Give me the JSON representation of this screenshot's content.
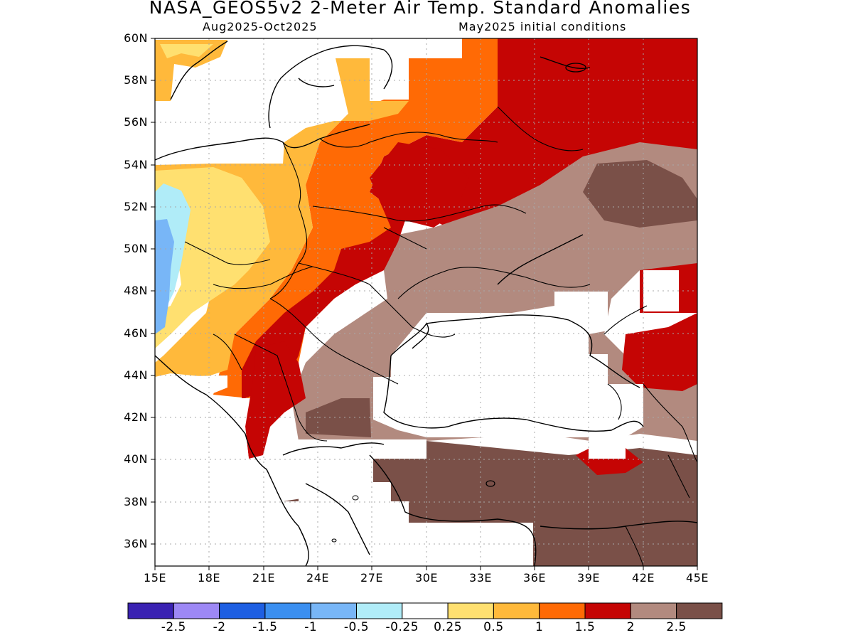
{
  "title": "NASA_GEOS5v2 2-Meter Air Temp. Standard Anomalies",
  "subtitle_left": "Aug2025-Oct2025",
  "subtitle_right": "May2025 initial conditions",
  "lat_labels": [
    "60N",
    "58N",
    "56N",
    "54N",
    "52N",
    "50N",
    "48N",
    "46N",
    "44N",
    "42N",
    "40N",
    "38N",
    "36N"
  ],
  "lon_labels": [
    "15E",
    "18E",
    "21E",
    "24E",
    "27E",
    "30E",
    "33E",
    "36E",
    "39E",
    "42E",
    "45E"
  ],
  "colorbar": {
    "colors": [
      "#3a22b2",
      "#9d88f5",
      "#1e5fe2",
      "#3b8ff0",
      "#78b6f7",
      "#b0ecf8",
      "#ffffff",
      "#ffe070",
      "#ffb93b",
      "#ff6a05",
      "#c50504",
      "#b28a7f",
      "#7a5048"
    ],
    "labels": [
      "-2.5",
      "-2",
      "-1.5",
      "-1",
      "-0.5",
      "-0.25",
      "0.25",
      "0.5",
      "1",
      "1.5",
      "2",
      "2.5"
    ]
  },
  "map": {
    "lon_range": [
      15,
      45
    ],
    "lat_range": [
      35,
      60
    ],
    "grid": true,
    "legend_position": "bottom"
  }
}
